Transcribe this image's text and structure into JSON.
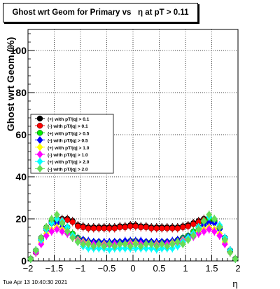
{
  "chart_data": {
    "type": "scatter",
    "title": "Ghost wrt Geom for Primary vs   η at pT > 0.11",
    "ylabel": "Ghost wrt Geom (%)",
    "xlabel": "η",
    "xlim": [
      -2.0,
      2.0
    ],
    "ylim": [
      0,
      110
    ],
    "xticks": [
      -2,
      -1.5,
      -1,
      -0.5,
      0,
      0.5,
      1,
      1.5,
      2
    ],
    "xtick_labels": [
      "−2",
      "−1.5",
      "−1",
      "−0.5",
      "0",
      "0.5",
      "1",
      "1.5",
      "2"
    ],
    "yticks": [
      0,
      20,
      40,
      60,
      80,
      100
    ],
    "ytick_labels": [
      "0",
      "20",
      "40",
      "60",
      "80",
      "100"
    ],
    "grid": true,
    "legend_position": "left-middle",
    "x": [
      -1.95,
      -1.85,
      -1.75,
      -1.65,
      -1.55,
      -1.45,
      -1.35,
      -1.25,
      -1.15,
      -1.05,
      -0.95,
      -0.85,
      -0.75,
      -0.65,
      -0.55,
      -0.45,
      -0.35,
      -0.25,
      -0.15,
      -0.05,
      0.05,
      0.15,
      0.25,
      0.35,
      0.45,
      0.55,
      0.65,
      0.75,
      0.85,
      0.95,
      1.05,
      1.15,
      1.25,
      1.35,
      1.45,
      1.55,
      1.65,
      1.75,
      1.85,
      1.95
    ],
    "series": [
      {
        "name": "(+) with pT/|q| > 0.1",
        "color": "#000000",
        "marker": "circle",
        "values": [
          1,
          4,
          10,
          15,
          18,
          19,
          20,
          20,
          19,
          17,
          16.5,
          16,
          16,
          16,
          16,
          16,
          16,
          16.5,
          16.5,
          17,
          17,
          16.5,
          16.5,
          16,
          16,
          16,
          16,
          16,
          16,
          16.5,
          17,
          18,
          19,
          20,
          20,
          19,
          16,
          11,
          5,
          1
        ]
      },
      {
        "name": "(-) with pT/|q| > 0.1",
        "color": "#ff0000",
        "marker": "circle",
        "values": [
          1,
          4,
          10,
          15,
          18,
          19,
          19.5,
          19.5,
          18.5,
          16.5,
          16,
          15.5,
          15.5,
          15.5,
          15.5,
          15.5,
          15.5,
          16,
          16,
          16.5,
          16.5,
          16,
          16,
          15.5,
          15.5,
          15.5,
          15.5,
          15.5,
          15.5,
          16,
          16.5,
          17.5,
          18.5,
          19.5,
          19.5,
          18.5,
          15.5,
          10.5,
          4.5,
          1
        ]
      },
      {
        "name": "(+) with pT/|q| > 0.5",
        "color": "#00ee00",
        "marker": "circle",
        "values": [
          1,
          5,
          11,
          16,
          19,
          20,
          18,
          16,
          13,
          11,
          10,
          9,
          9,
          9,
          8.5,
          8.5,
          9,
          9,
          9,
          9.5,
          9.5,
          9,
          9,
          9,
          8.5,
          9,
          9,
          9,
          10,
          11,
          12,
          14,
          16,
          18,
          20,
          19,
          16,
          11,
          5,
          1
        ]
      },
      {
        "name": "(-) with pT/|q| > 0.5",
        "color": "#0000ff",
        "marker": "diamond",
        "values": [
          1,
          5,
          11,
          15,
          18,
          18,
          16,
          14,
          12,
          10.5,
          10,
          9.5,
          9,
          9,
          9,
          9,
          9,
          9,
          9.5,
          9.5,
          9.5,
          9.5,
          9,
          9,
          9,
          9,
          9,
          9.5,
          10,
          10.5,
          11.5,
          13,
          15,
          17,
          18,
          18,
          15,
          11,
          5,
          1
        ]
      },
      {
        "name": "(+) with pT/|q| > 1.0",
        "color": "#ffff00",
        "marker": "diamond",
        "values": [
          1,
          4,
          9,
          13,
          15,
          16,
          15,
          14,
          12,
          10,
          9,
          8.5,
          8,
          8,
          8,
          8,
          8,
          8,
          8,
          8.5,
          8.5,
          8,
          8,
          8,
          8,
          8,
          8,
          8.5,
          9,
          10,
          11,
          12,
          14,
          15,
          16,
          15,
          13,
          9,
          4,
          1
        ]
      },
      {
        "name": "(-) with pT/|q| > 1.0",
        "color": "#ff00ff",
        "marker": "diamond",
        "values": [
          1,
          4,
          8,
          12,
          14,
          15,
          14,
          13,
          11,
          9.5,
          8.5,
          8,
          8,
          8,
          7.5,
          7.5,
          8,
          8,
          8,
          8,
          8,
          8,
          8,
          8,
          7.5,
          8,
          8,
          8,
          8.5,
          9.5,
          10.5,
          11.5,
          13,
          14,
          15,
          14,
          12,
          8,
          4,
          1
        ]
      },
      {
        "name": "(+) with pT/|q| > 2.0",
        "color": "#00ffff",
        "marker": "diamond",
        "values": [
          1,
          5,
          10,
          15,
          18,
          20,
          19,
          16,
          12,
          9,
          7,
          6,
          6,
          6,
          6,
          5.5,
          6,
          6,
          6,
          6,
          6,
          6,
          6,
          6,
          5.5,
          6,
          6,
          6,
          7,
          9,
          11,
          13,
          16,
          19,
          21,
          20,
          17,
          11,
          5,
          1
        ]
      },
      {
        "name": "(-) with pT/|q| > 2.0",
        "color": "#66dd55",
        "marker": "diamond",
        "values": [
          1,
          5,
          11,
          16,
          20,
          22,
          18,
          14,
          11,
          9,
          8,
          8,
          7,
          8,
          7,
          8,
          7,
          8,
          8,
          7,
          8,
          7,
          8,
          8,
          7,
          8,
          7,
          8,
          9,
          8,
          10,
          12,
          15,
          19,
          22,
          20,
          16,
          10,
          4,
          1
        ]
      }
    ]
  },
  "footer": "Tue Apr 13 10:40:30 2021"
}
